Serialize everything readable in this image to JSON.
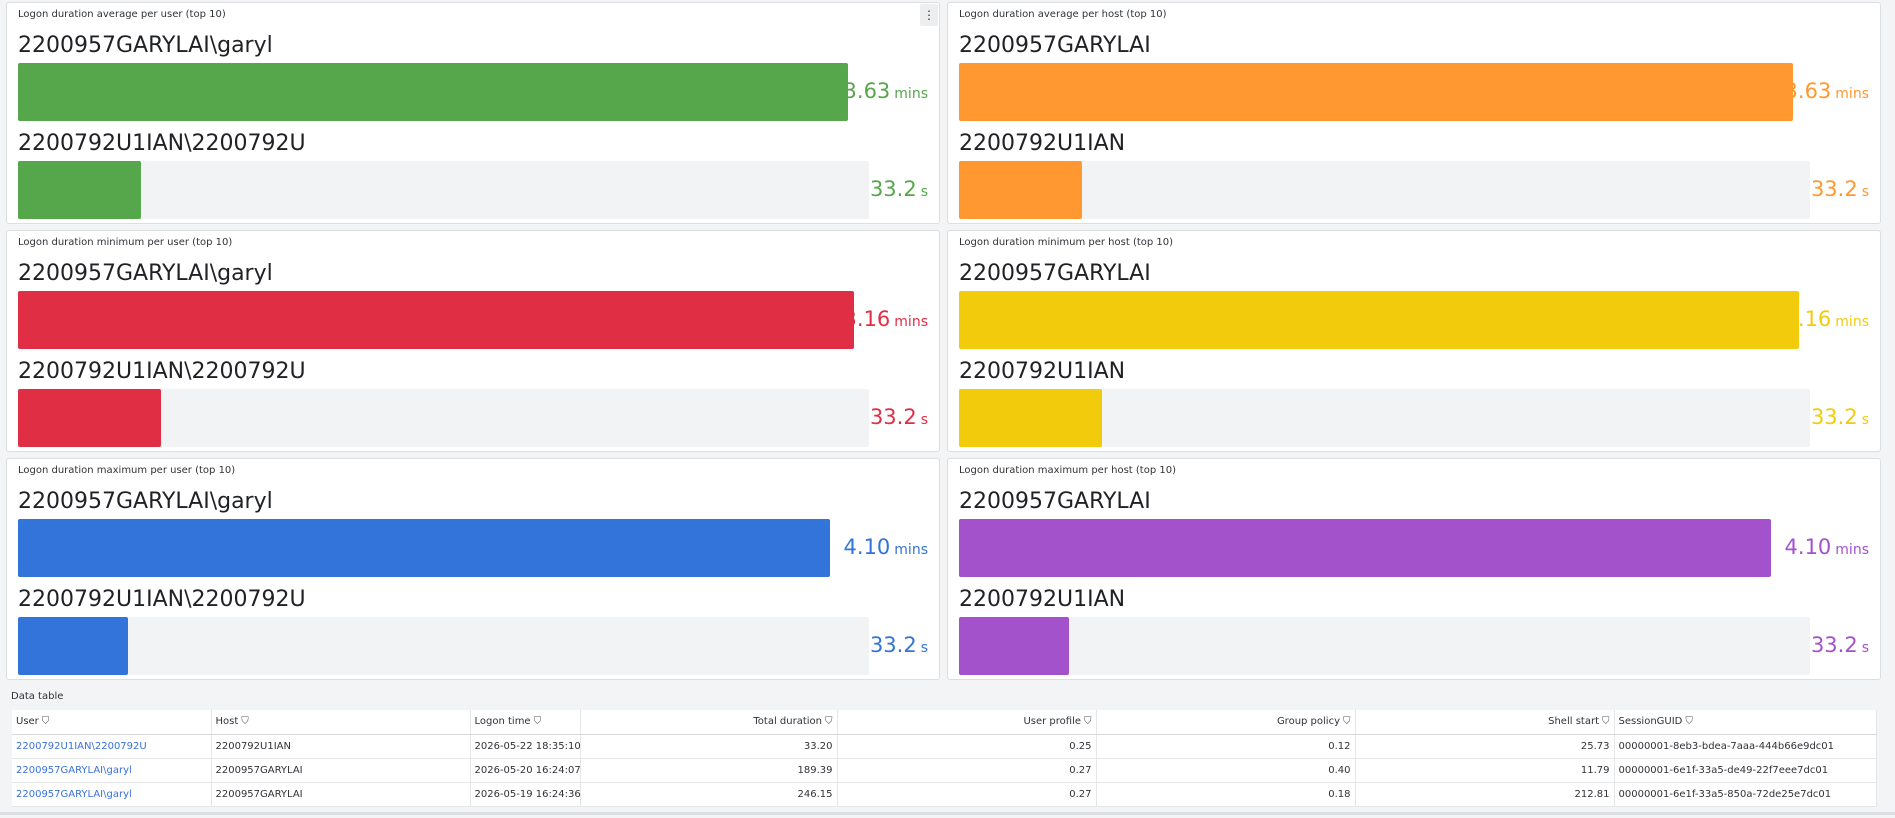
{
  "panels": [
    {
      "title": "Logon duration average per user (top 10)",
      "menu_label": "⋮",
      "color": "#56a64b",
      "rows": [
        {
          "label": "2200957GARYLAI\\garyl",
          "value": "3.63",
          "unit": "mins",
          "fraction": 1.0
        },
        {
          "label": "2200792U1IAN\\2200792U",
          "value": "33.2",
          "unit": "s",
          "fraction": 0.145
        }
      ]
    },
    {
      "title": "Logon duration average per host (top 10)",
      "color": "#ff9830",
      "rows": [
        {
          "label": "2200957GARYLAI",
          "value": "3.63",
          "unit": "mins",
          "fraction": 1.0
        },
        {
          "label": "2200792U1IAN",
          "value": "33.2",
          "unit": "s",
          "fraction": 0.145
        }
      ]
    },
    {
      "title": "Logon duration minimum per user (top 10)",
      "color": "#e02f44",
      "rows": [
        {
          "label": "2200957GARYLAI\\garyl",
          "value": "3.16",
          "unit": "mins",
          "fraction": 1.0
        },
        {
          "label": "2200792U1IAN\\2200792U",
          "value": "33.2",
          "unit": "s",
          "fraction": 0.168
        }
      ]
    },
    {
      "title": "Logon duration minimum per host (top 10)",
      "color": "#f2cc0c",
      "rows": [
        {
          "label": "2200957GARYLAI",
          "value": "3.16",
          "unit": "mins",
          "fraction": 1.0
        },
        {
          "label": "2200792U1IAN",
          "value": "33.2",
          "unit": "s",
          "fraction": 0.168
        }
      ]
    },
    {
      "title": "Logon duration maximum per user (top 10)",
      "color": "#3274d9",
      "rows": [
        {
          "label": "2200957GARYLAI\\garyl",
          "value": "4.10",
          "unit": "mins",
          "fraction": 1.0
        },
        {
          "label": "2200792U1IAN\\2200792U",
          "value": "33.2",
          "unit": "s",
          "fraction": 0.129
        }
      ]
    },
    {
      "title": "Logon duration maximum per host (top 10)",
      "color": "#a352cc",
      "rows": [
        {
          "label": "2200957GARYLAI",
          "value": "4.10",
          "unit": "mins",
          "fraction": 1.0
        },
        {
          "label": "2200792U1IAN",
          "value": "33.2",
          "unit": "s",
          "fraction": 0.129
        }
      ]
    }
  ],
  "table": {
    "title": "Data table",
    "filter_icon": "filter-icon",
    "columns": [
      "User",
      "Host",
      "Logon time",
      "Total duration",
      "User profile",
      "Group policy",
      "Shell start",
      "SessionGUID"
    ],
    "rows": [
      [
        "2200792U1IAN\\2200792U",
        "2200792U1IAN",
        "2026-05-22 18:35:10",
        "33.20",
        "0.25",
        "0.12",
        "25.73",
        "00000001-8eb3-bdea-7aaa-444b66e9dc01"
      ],
      [
        "2200957GARYLAI\\garyl",
        "2200957GARYLAI",
        "2026-05-20 16:24:07",
        "189.39",
        "0.27",
        "0.40",
        "11.79",
        "00000001-6e1f-33a5-de49-22f7eee7dc01"
      ],
      [
        "2200957GARYLAI\\garyl",
        "2200957GARYLAI",
        "2026-05-19 16:24:36",
        "246.15",
        "0.27",
        "0.18",
        "212.81",
        "00000001-6e1f-33a5-850a-72de25e7dc01"
      ]
    ]
  }
}
